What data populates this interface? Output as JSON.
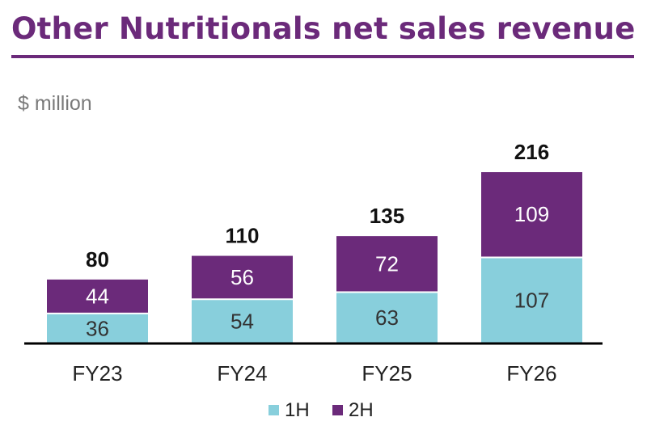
{
  "title": "Other Nutritionals net sales revenue",
  "units": "$ million",
  "colors": {
    "title": "#6b2a7a",
    "h1": "#88cfdc",
    "h2": "#6b2a7a",
    "axis": "#000000"
  },
  "chart_data": {
    "type": "bar",
    "stacked": true,
    "categories": [
      "FY23",
      "FY24",
      "FY25",
      "FY26"
    ],
    "series": [
      {
        "name": "1H",
        "values": [
          36,
          54,
          63,
          107
        ]
      },
      {
        "name": "2H",
        "values": [
          44,
          56,
          72,
          109
        ]
      }
    ],
    "totals": [
      80,
      110,
      135,
      216
    ],
    "ylabel": "$ million",
    "legend": "bottom"
  }
}
